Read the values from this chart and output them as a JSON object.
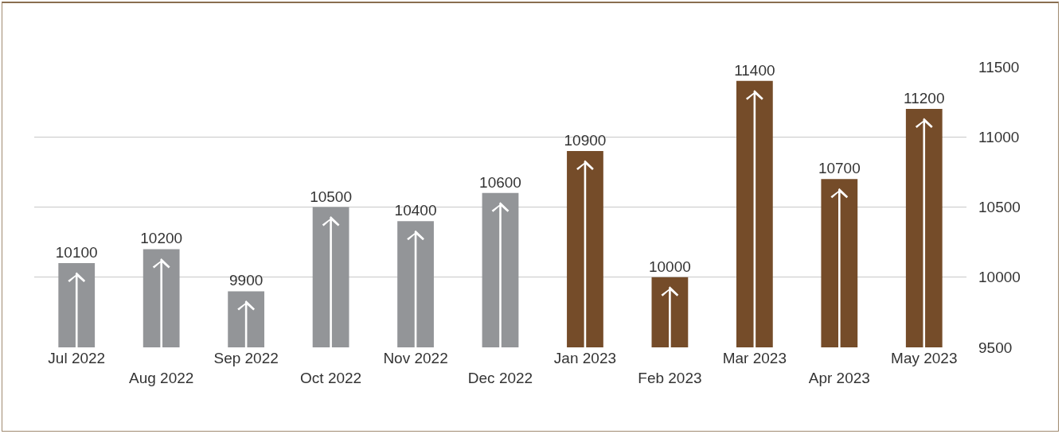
{
  "chart_data": {
    "type": "bar",
    "categories": [
      "Jul 2022",
      "Aug 2022",
      "Sep 2022",
      "Oct 2022",
      "Nov 2022",
      "Dec 2022",
      "Jan 2023",
      "Feb 2023",
      "Mar 2023",
      "Apr 2023",
      "May 2023"
    ],
    "values": [
      10100,
      10200,
      9900,
      10500,
      10400,
      10600,
      10900,
      10000,
      11400,
      10700,
      11200
    ],
    "colors": [
      "#939598",
      "#939598",
      "#939598",
      "#939598",
      "#939598",
      "#939598",
      "#754c29",
      "#754c29",
      "#754c29",
      "#754c29",
      "#754c29"
    ],
    "ylim": [
      9500,
      11500
    ],
    "yticks": [
      9500,
      10000,
      10500,
      11000,
      11500
    ],
    "grid": "y",
    "data_labels": true
  }
}
